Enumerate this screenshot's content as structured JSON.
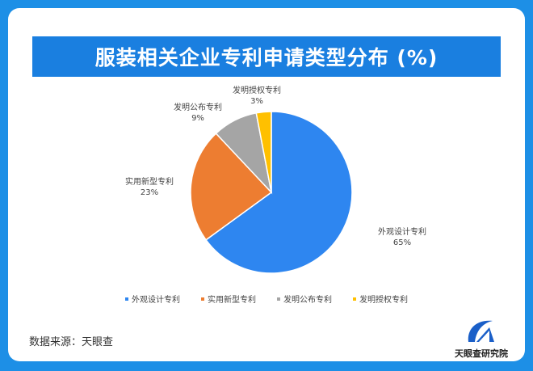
{
  "title": "服装相关企业专利申请类型分布 (%)",
  "source": "数据来源：天眼查",
  "logo_text": "天眼查研究院",
  "chart_data": {
    "type": "pie",
    "title": "服装相关企业专利申请类型分布 (%)",
    "categories": [
      "外观设计专利",
      "实用新型专利",
      "发明公布专利",
      "发明授权专利"
    ],
    "values": [
      65,
      23,
      9,
      3
    ],
    "value_labels": [
      "65%",
      "23%",
      "9%",
      "3%"
    ],
    "colors": [
      "#2e86f0",
      "#ed7d31",
      "#a5a5a5",
      "#ffc000"
    ],
    "start_angle": "12 o'clock, clockwise",
    "legend_placement": "bottom"
  }
}
